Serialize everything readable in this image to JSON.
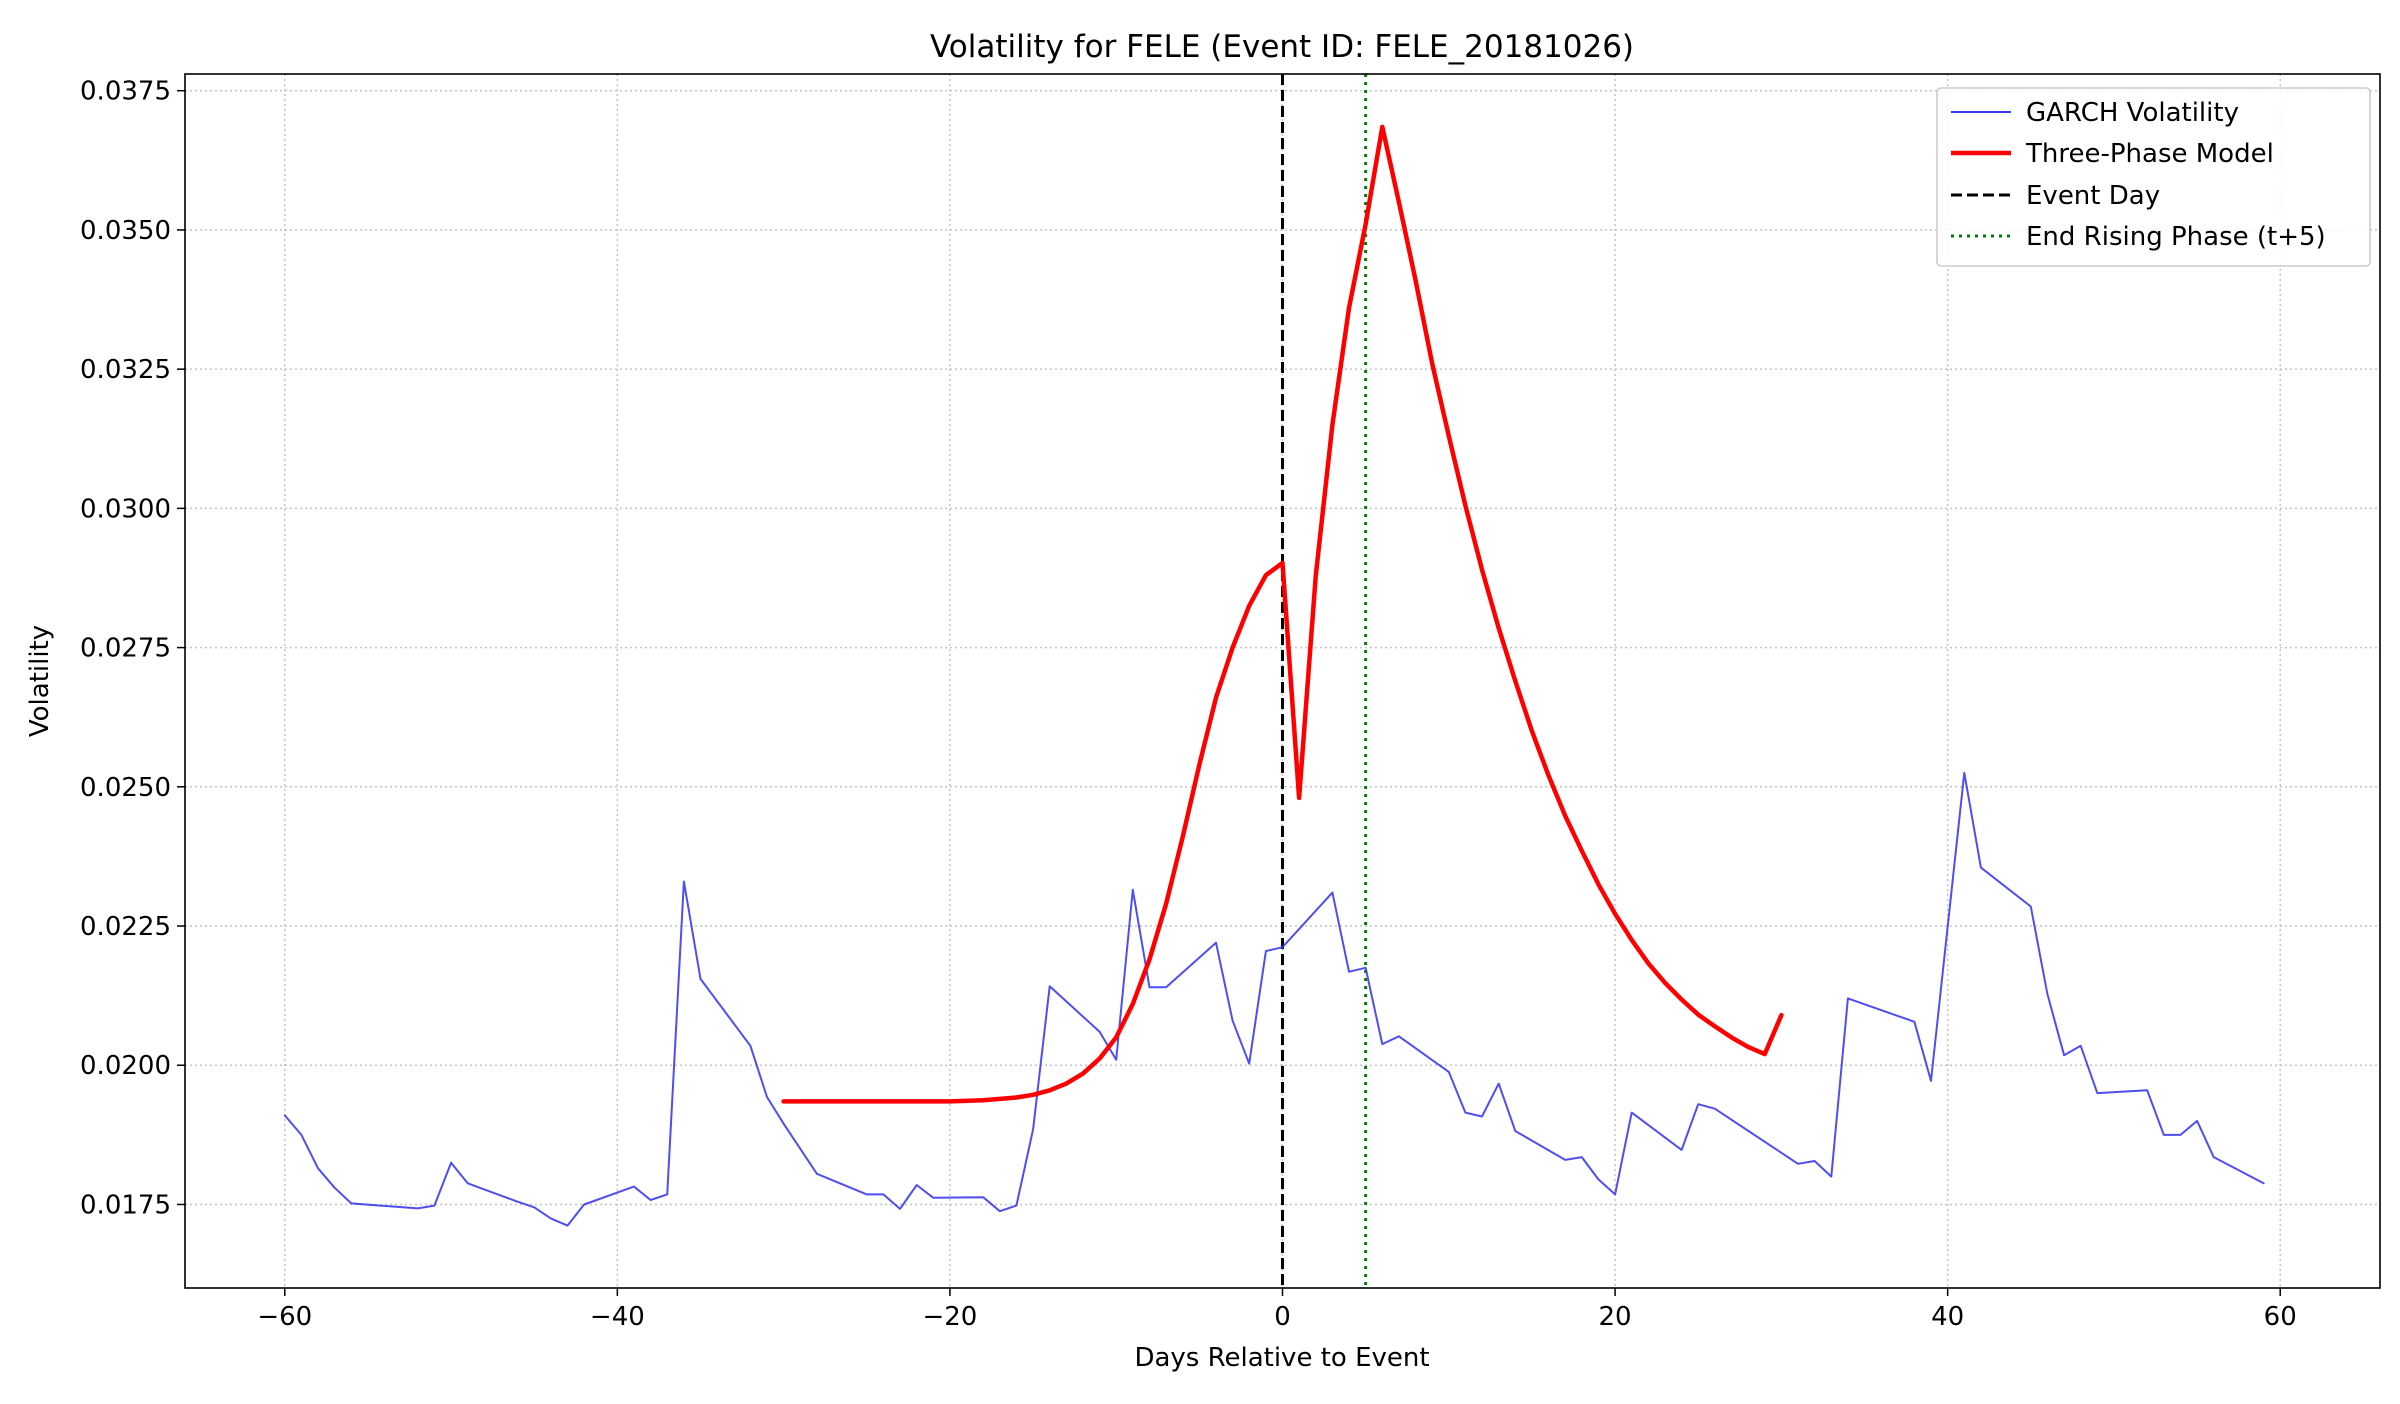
{
  "chart_data": {
    "type": "line",
    "title": "Volatility for FELE (Event ID: FELE_20181026)",
    "xlabel": "Days Relative to Event",
    "ylabel": "Volatility",
    "xlim": [
      -66,
      66
    ],
    "ylim": [
      0.016,
      0.0378
    ],
    "xticks": [
      -60,
      -40,
      -20,
      0,
      20,
      40,
      60
    ],
    "xtick_labels": [
      "−60",
      "−40",
      "−20",
      "0",
      "20",
      "40",
      "60"
    ],
    "yticks": [
      0.0175,
      0.02,
      0.0225,
      0.025,
      0.0275,
      0.03,
      0.0325,
      0.035,
      0.0375
    ],
    "ytick_labels": [
      "0.0175",
      "0.0200",
      "0.0225",
      "0.0250",
      "0.0275",
      "0.0300",
      "0.0325",
      "0.0350",
      "0.0375"
    ],
    "grid": true,
    "legend_position": "top-right",
    "series": [
      {
        "name": "GARCH Volatility",
        "style": "solid-thin",
        "color": "#3b3bf0",
        "points": [
          [
            -60,
            0.0191
          ],
          [
            -59,
            0.01875
          ],
          [
            -58,
            0.01815
          ],
          [
            -57,
            0.0178
          ],
          [
            -56,
            0.01752
          ],
          [
            -52,
            0.01743
          ],
          [
            -51,
            0.01748
          ],
          [
            -50,
            0.01825
          ],
          [
            -49,
            0.01788
          ],
          [
            -46,
            0.01755
          ],
          [
            -45,
            0.01745
          ],
          [
            -44,
            0.01725
          ],
          [
            -43,
            0.01712
          ],
          [
            -42,
            0.0175
          ],
          [
            -39,
            0.01782
          ],
          [
            -38,
            0.01758
          ],
          [
            -37,
            0.01768
          ],
          [
            -36,
            0.0233
          ],
          [
            -35,
            0.02155
          ],
          [
            -32,
            0.02035
          ],
          [
            -31,
            0.01943
          ],
          [
            -30,
            0.01895
          ],
          [
            -28,
            0.01805
          ],
          [
            -25,
            0.01768
          ],
          [
            -24,
            0.01768
          ],
          [
            -23,
            0.01742
          ],
          [
            -22,
            0.01785
          ],
          [
            -21,
            0.01762
          ],
          [
            -18,
            0.01763
          ],
          [
            -17,
            0.01738
          ],
          [
            -16,
            0.01748
          ],
          [
            -15,
            0.01885
          ],
          [
            -14,
            0.02142
          ],
          [
            -11,
            0.0206
          ],
          [
            -10,
            0.0201
          ],
          [
            -9,
            0.02315
          ],
          [
            -8,
            0.0214
          ],
          [
            -7,
            0.0214
          ],
          [
            -4,
            0.0222
          ],
          [
            -3,
            0.0208
          ],
          [
            -2,
            0.02003
          ],
          [
            -1,
            0.02205
          ],
          [
            0,
            0.02212
          ],
          [
            3,
            0.0231
          ],
          [
            4,
            0.02168
          ],
          [
            5,
            0.02175
          ],
          [
            6,
            0.02038
          ],
          [
            7,
            0.02052
          ],
          [
            10,
            0.01988
          ],
          [
            11,
            0.01915
          ],
          [
            12,
            0.01908
          ],
          [
            13,
            0.01967
          ],
          [
            14,
            0.01882
          ],
          [
            17,
            0.0183
          ],
          [
            18,
            0.01835
          ],
          [
            19,
            0.01795
          ],
          [
            20,
            0.01768
          ],
          [
            21,
            0.01915
          ],
          [
            24,
            0.01848
          ],
          [
            25,
            0.0193
          ],
          [
            26,
            0.01922
          ],
          [
            31,
            0.01823
          ],
          [
            32,
            0.01828
          ],
          [
            33,
            0.018
          ],
          [
            34,
            0.0212
          ],
          [
            38,
            0.02078
          ],
          [
            39,
            0.01972
          ],
          [
            41,
            0.02525
          ],
          [
            42,
            0.02355
          ],
          [
            45,
            0.02285
          ],
          [
            46,
            0.02128
          ],
          [
            47,
            0.02018
          ],
          [
            48,
            0.02035
          ],
          [
            49,
            0.0195
          ],
          [
            52,
            0.01955
          ],
          [
            53,
            0.01875
          ],
          [
            54,
            0.01875
          ],
          [
            55,
            0.019
          ],
          [
            56,
            0.01835
          ],
          [
            59,
            0.01788
          ]
        ]
      },
      {
        "name": "Three-Phase Model",
        "style": "solid-thick",
        "color": "#ff0000",
        "points": [
          [
            -30,
            0.01935
          ],
          [
            -20,
            0.01935
          ],
          [
            -18,
            0.01937
          ],
          [
            -16,
            0.01942
          ],
          [
            -15,
            0.01947
          ],
          [
            -14,
            0.01955
          ],
          [
            -13,
            0.01967
          ],
          [
            -12,
            0.01985
          ],
          [
            -11,
            0.02012
          ],
          [
            -10,
            0.0205
          ],
          [
            -9,
            0.0211
          ],
          [
            -8,
            0.0219
          ],
          [
            -7,
            0.0229
          ],
          [
            -6,
            0.0241
          ],
          [
            -5,
            0.0254
          ],
          [
            -4,
            0.0266
          ],
          [
            -3,
            0.0275
          ],
          [
            -2,
            0.02825
          ],
          [
            -1,
            0.0288
          ],
          [
            0,
            0.02902
          ],
          [
            1,
            0.0248
          ],
          [
            2,
            0.0288
          ],
          [
            3,
            0.0315
          ],
          [
            4,
            0.0336
          ],
          [
            5,
            0.0351
          ],
          [
            6,
            0.03685
          ],
          [
            7,
            0.0355
          ],
          [
            8,
            0.0341
          ],
          [
            9,
            0.0326
          ],
          [
            10,
            0.0313
          ],
          [
            11,
            0.03005
          ],
          [
            12,
            0.0289
          ],
          [
            13,
            0.02785
          ],
          [
            14,
            0.0269
          ],
          [
            15,
            0.026
          ],
          [
            16,
            0.0252
          ],
          [
            17,
            0.02448
          ],
          [
            18,
            0.02385
          ],
          [
            19,
            0.02325
          ],
          [
            20,
            0.02272
          ],
          [
            21,
            0.02225
          ],
          [
            22,
            0.02183
          ],
          [
            23,
            0.02148
          ],
          [
            24,
            0.02118
          ],
          [
            25,
            0.02091
          ],
          [
            26,
            0.0207
          ],
          [
            27,
            0.0205
          ],
          [
            28,
            0.02033
          ],
          [
            29,
            0.0202
          ],
          [
            30,
            0.0209
          ]
        ]
      }
    ],
    "vlines": [
      {
        "name": "Event Day",
        "x": 0,
        "style": "dashed",
        "color": "#000000"
      },
      {
        "name": "End Rising Phase (t+5)",
        "x": 5,
        "style": "dotted",
        "color": "#008000"
      }
    ]
  }
}
